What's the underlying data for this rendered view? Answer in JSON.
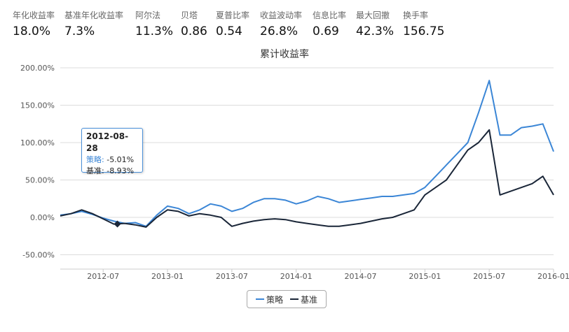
{
  "stats": [
    {
      "label": "年化收益率",
      "value": "18.0%"
    },
    {
      "label": "基准年化收益率",
      "value": "7.3%"
    },
    {
      "label": "阿尔法",
      "value": "11.3%"
    },
    {
      "label": "贝塔",
      "value": "0.86"
    },
    {
      "label": "夏普比率",
      "value": "0.54"
    },
    {
      "label": "收益波动率",
      "value": "26.8%"
    },
    {
      "label": "信息比率",
      "value": "0.69"
    },
    {
      "label": "最大回撤",
      "value": "42.3%"
    },
    {
      "label": "换手率",
      "value": "156.75"
    }
  ],
  "tooltip": {
    "date": "2012-08-28",
    "strategy_label": "策略:",
    "strategy_value": "-5.01%",
    "benchmark_label": "基准:",
    "benchmark_value": "-8.93%"
  },
  "chart_data": {
    "type": "line",
    "title": "累计收益率",
    "xlabel": "",
    "ylabel": "",
    "ylim": [
      -60,
      210
    ],
    "yticks": [
      "200.00%",
      "150.00%",
      "100.00%",
      "50.00%",
      "0.00%",
      "-50.00%"
    ],
    "ytick_values": [
      200,
      150,
      100,
      50,
      0,
      -50
    ],
    "xticks": [
      "2012-07",
      "2013-01",
      "2013-07",
      "2014-01",
      "2014-07",
      "2015-01",
      "2015-07",
      "2016-01"
    ],
    "xlim": [
      "2012-03",
      "2016-01"
    ],
    "grid": true,
    "legend": "bottom",
    "series": [
      {
        "name": "策略",
        "color": "#3b86d6",
        "x": [
          "2012-03",
          "2012-04",
          "2012-05",
          "2012-06",
          "2012-07",
          "2012-08",
          "2012-09",
          "2012-10",
          "2012-11",
          "2012-12",
          "2013-01",
          "2013-02",
          "2013-03",
          "2013-04",
          "2013-05",
          "2013-06",
          "2013-07",
          "2013-08",
          "2013-09",
          "2013-10",
          "2013-11",
          "2013-12",
          "2014-01",
          "2014-02",
          "2014-03",
          "2014-04",
          "2014-05",
          "2014-06",
          "2014-07",
          "2014-08",
          "2014-09",
          "2014-10",
          "2014-11",
          "2014-12",
          "2015-01",
          "2015-02",
          "2015-03",
          "2015-04",
          "2015-05",
          "2015-06",
          "2015-07",
          "2015-08",
          "2015-09",
          "2015-10",
          "2015-11",
          "2015-12",
          "2016-01"
        ],
        "values": [
          3,
          5,
          8,
          4,
          -1,
          -5,
          -8,
          -7,
          -12,
          3,
          15,
          12,
          5,
          10,
          18,
          15,
          8,
          12,
          20,
          25,
          25,
          23,
          18,
          22,
          28,
          25,
          20,
          22,
          24,
          26,
          28,
          28,
          30,
          32,
          40,
          55,
          70,
          85,
          100,
          140,
          183,
          110,
          110,
          120,
          122,
          125,
          88
        ]
      },
      {
        "name": "基准",
        "color": "#1a2638",
        "x": [
          "2012-03",
          "2012-04",
          "2012-05",
          "2012-06",
          "2012-07",
          "2012-08",
          "2012-09",
          "2012-10",
          "2012-11",
          "2012-12",
          "2013-01",
          "2013-02",
          "2013-03",
          "2013-04",
          "2013-05",
          "2013-06",
          "2013-07",
          "2013-08",
          "2013-09",
          "2013-10",
          "2013-11",
          "2013-12",
          "2014-01",
          "2014-02",
          "2014-03",
          "2014-04",
          "2014-05",
          "2014-06",
          "2014-07",
          "2014-08",
          "2014-09",
          "2014-10",
          "2014-11",
          "2014-12",
          "2015-01",
          "2015-02",
          "2015-03",
          "2015-04",
          "2015-05",
          "2015-06",
          "2015-07",
          "2015-08",
          "2015-09",
          "2015-10",
          "2015-11",
          "2015-12",
          "2016-01"
        ],
        "values": [
          2,
          5,
          10,
          5,
          -2,
          -9,
          -8,
          -10,
          -13,
          0,
          10,
          8,
          2,
          5,
          3,
          0,
          -12,
          -8,
          -5,
          -3,
          -2,
          -3,
          -6,
          -8,
          -10,
          -12,
          -12,
          -10,
          -8,
          -5,
          -2,
          0,
          5,
          10,
          30,
          40,
          50,
          70,
          90,
          100,
          117,
          30,
          35,
          40,
          45,
          55,
          30
        ]
      }
    ]
  }
}
